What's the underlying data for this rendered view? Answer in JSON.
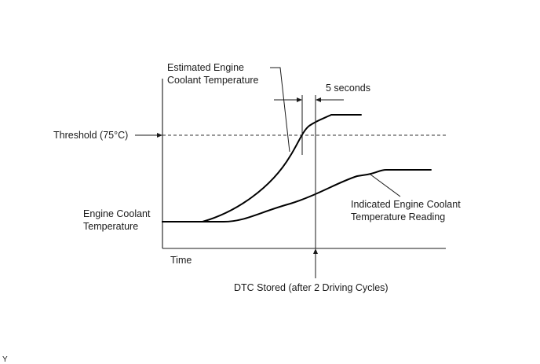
{
  "labels": {
    "estimated_line1": "Estimated Engine",
    "estimated_line2": "Coolant Temperature",
    "five_seconds": "5 seconds",
    "threshold": "Threshold (75°C)",
    "y_axis_line1": "Engine Coolant",
    "y_axis_line2": "Temperature",
    "indicated_line1": "Indicated Engine Coolant",
    "indicated_line2": "Temperature Reading",
    "x_axis": "Time",
    "dtc": "DTC Stored (after 2 Driving Cycles)",
    "corner_mark": "Y"
  }
}
